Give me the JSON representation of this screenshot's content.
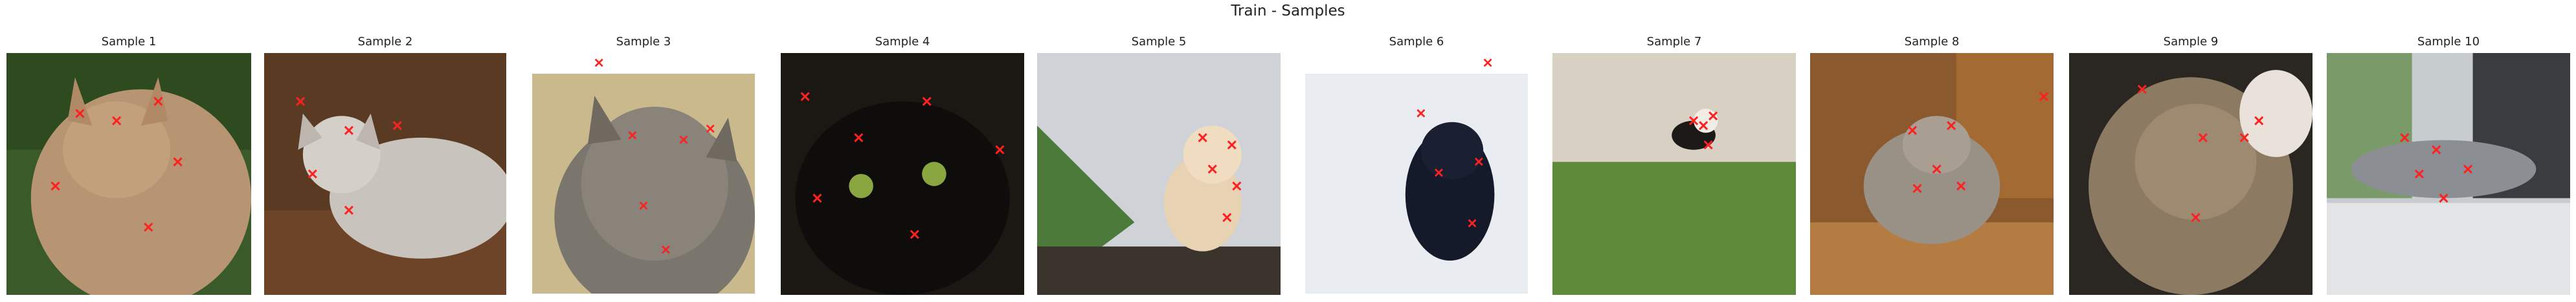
{
  "figure": {
    "title": "Train - Samples"
  },
  "marker": {
    "glyph": "×",
    "color": "#ff2020"
  },
  "samples": [
    {
      "title": "Sample 1",
      "description": "tabby cat, green foliage",
      "keypoints": [
        [
          0.3,
          0.25
        ],
        [
          0.45,
          0.28
        ],
        [
          0.62,
          0.2
        ],
        [
          0.7,
          0.45
        ],
        [
          0.58,
          0.72
        ],
        [
          0.2,
          0.55
        ]
      ]
    },
    {
      "title": "Sample 2",
      "description": "grey cat in wooden box",
      "keypoints": [
        [
          0.15,
          0.2
        ],
        [
          0.35,
          0.32
        ],
        [
          0.55,
          0.3
        ],
        [
          0.35,
          0.65
        ],
        [
          0.2,
          0.5
        ]
      ]
    },
    {
      "title": "Sample 3",
      "description": "striped cat close-up",
      "keypoints": [
        [
          0.3,
          -0.05
        ],
        [
          0.45,
          0.28
        ],
        [
          0.68,
          0.3
        ],
        [
          0.8,
          0.25
        ],
        [
          0.5,
          0.6
        ],
        [
          0.6,
          0.8
        ]
      ]
    },
    {
      "title": "Sample 4",
      "description": "black cat, green eyes",
      "keypoints": [
        [
          0.1,
          0.18
        ],
        [
          0.32,
          0.35
        ],
        [
          0.6,
          0.2
        ],
        [
          0.9,
          0.4
        ],
        [
          0.55,
          0.75
        ],
        [
          0.15,
          0.6
        ]
      ]
    },
    {
      "title": "Sample 5",
      "description": "white-orange kitten",
      "keypoints": [
        [
          0.68,
          0.35
        ],
        [
          0.8,
          0.38
        ],
        [
          0.72,
          0.48
        ],
        [
          0.82,
          0.55
        ],
        [
          0.78,
          0.68
        ]
      ]
    },
    {
      "title": "Sample 6",
      "description": "black cat on snow",
      "keypoints": [
        [
          0.52,
          0.18
        ],
        [
          0.82,
          -0.05
        ],
        [
          0.6,
          0.45
        ],
        [
          0.78,
          0.4
        ],
        [
          0.75,
          0.68
        ]
      ]
    },
    {
      "title": "Sample 7",
      "description": "cat in grass",
      "keypoints": [
        [
          0.58,
          0.28
        ],
        [
          0.62,
          0.3
        ],
        [
          0.66,
          0.26
        ],
        [
          0.64,
          0.38
        ]
      ]
    },
    {
      "title": "Sample 8",
      "description": "tabby on desk",
      "keypoints": [
        [
          0.42,
          0.32
        ],
        [
          0.58,
          0.3
        ],
        [
          0.52,
          0.48
        ],
        [
          0.44,
          0.56
        ],
        [
          0.62,
          0.55
        ],
        [
          0.96,
          0.18
        ]
      ]
    },
    {
      "title": "Sample 9",
      "description": "tabby close-up",
      "keypoints": [
        [
          0.3,
          0.15
        ],
        [
          0.55,
          0.35
        ],
        [
          0.72,
          0.35
        ],
        [
          0.78,
          0.28
        ],
        [
          0.52,
          0.68
        ]
      ]
    },
    {
      "title": "Sample 10",
      "description": "cat on windowsill",
      "keypoints": [
        [
          0.32,
          0.35
        ],
        [
          0.38,
          0.5
        ],
        [
          0.48,
          0.6
        ],
        [
          0.58,
          0.48
        ],
        [
          0.45,
          0.4
        ]
      ]
    }
  ]
}
